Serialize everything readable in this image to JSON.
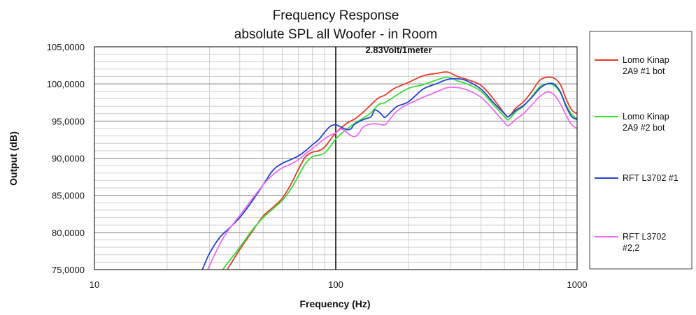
{
  "chart_data": {
    "type": "line",
    "title": [
      "Frequency Response",
      "absolute SPL all Woofer - in Room"
    ],
    "annotation": "2.83Volt/1meter",
    "xlabel": "Frequency (Hz)",
    "ylabel": "Output (dB)",
    "x_scale": "log",
    "xlim": [
      10,
      1000
    ],
    "ylim": [
      75,
      105
    ],
    "x_ticks": [
      {
        "value": 10,
        "label": "10"
      },
      {
        "value": 100,
        "label": "100"
      },
      {
        "value": 1000,
        "label": "1000"
      }
    ],
    "y_ticks": [
      {
        "value": 75,
        "label": "75,0000"
      },
      {
        "value": 80,
        "label": "80,0000"
      },
      {
        "value": 85,
        "label": "85,0000"
      },
      {
        "value": 90,
        "label": "90,0000"
      },
      {
        "value": 95,
        "label": "95,0000"
      },
      {
        "value": 100,
        "label": "100,0000"
      },
      {
        "value": 105,
        "label": "105,0000"
      }
    ],
    "reference_line_x": 100,
    "grid": true,
    "legend_position": "right",
    "series": [
      {
        "name": [
          "Lomo Kinap",
          "2A9 #1 bot"
        ],
        "color": "#e8382b",
        "points": [
          [
            35.5,
            75
          ],
          [
            40,
            77.7
          ],
          [
            45,
            80.1
          ],
          [
            50,
            82.2
          ],
          [
            55,
            83.4
          ],
          [
            60,
            84.6
          ],
          [
            65,
            86.4
          ],
          [
            70,
            88.5
          ],
          [
            75,
            90.2
          ],
          [
            80,
            90.8
          ],
          [
            85,
            91.0
          ],
          [
            90,
            91.5
          ],
          [
            95,
            92.5
          ],
          [
            100,
            93.4
          ],
          [
            110,
            94.6
          ],
          [
            120,
            95.3
          ],
          [
            130,
            96.2
          ],
          [
            140,
            97.2
          ],
          [
            150,
            98.1
          ],
          [
            160,
            98.5
          ],
          [
            175,
            99.4
          ],
          [
            200,
            100.2
          ],
          [
            230,
            101.1
          ],
          [
            260,
            101.4
          ],
          [
            290,
            101.6
          ],
          [
            320,
            101.0
          ],
          [
            350,
            100.6
          ],
          [
            400,
            99.8
          ],
          [
            450,
            98.0
          ],
          [
            500,
            96.0
          ],
          [
            520,
            95.6
          ],
          [
            560,
            96.8
          ],
          [
            600,
            97.6
          ],
          [
            650,
            99.0
          ],
          [
            700,
            100.5
          ],
          [
            750,
            100.9
          ],
          [
            800,
            100.8
          ],
          [
            850,
            100.0
          ],
          [
            900,
            98.0
          ],
          [
            950,
            96.5
          ],
          [
            1000,
            96.0
          ]
        ]
      },
      {
        "name": [
          "Lomo Kinap",
          "2A9 #2 bot"
        ],
        "color": "#33e033",
        "points": [
          [
            34,
            75
          ],
          [
            40,
            78.0
          ],
          [
            45,
            80.3
          ],
          [
            50,
            82.0
          ],
          [
            55,
            83.2
          ],
          [
            60,
            84.3
          ],
          [
            65,
            85.8
          ],
          [
            70,
            87.6
          ],
          [
            75,
            89.3
          ],
          [
            80,
            90.2
          ],
          [
            85,
            90.4
          ],
          [
            90,
            90.7
          ],
          [
            95,
            91.6
          ],
          [
            100,
            92.6
          ],
          [
            110,
            93.8
          ],
          [
            120,
            94.7
          ],
          [
            130,
            95.4
          ],
          [
            140,
            96.1
          ],
          [
            150,
            97.2
          ],
          [
            160,
            97.5
          ],
          [
            175,
            98.3
          ],
          [
            200,
            99.4
          ],
          [
            230,
            99.9
          ],
          [
            260,
            100.5
          ],
          [
            290,
            100.9
          ],
          [
            320,
            100.4
          ],
          [
            350,
            100.0
          ],
          [
            400,
            99.0
          ],
          [
            450,
            97.2
          ],
          [
            500,
            95.6
          ],
          [
            520,
            95.2
          ],
          [
            560,
            96.3
          ],
          [
            600,
            97.0
          ],
          [
            650,
            98.3
          ],
          [
            700,
            99.6
          ],
          [
            750,
            100.0
          ],
          [
            800,
            99.8
          ],
          [
            850,
            98.9
          ],
          [
            900,
            97.2
          ],
          [
            950,
            95.9
          ],
          [
            1000,
            95.3
          ]
        ]
      },
      {
        "name": [
          "RFT L3702 #1"
        ],
        "color": "#2442d6",
        "points": [
          [
            28,
            75
          ],
          [
            30,
            77.2
          ],
          [
            33,
            79.3
          ],
          [
            36,
            80.5
          ],
          [
            40,
            82.0
          ],
          [
            45,
            84.2
          ],
          [
            50,
            86.4
          ],
          [
            55,
            88.4
          ],
          [
            60,
            89.3
          ],
          [
            65,
            89.8
          ],
          [
            70,
            90.3
          ],
          [
            75,
            91.0
          ],
          [
            80,
            91.8
          ],
          [
            85,
            92.5
          ],
          [
            90,
            93.5
          ],
          [
            95,
            94.3
          ],
          [
            100,
            94.5
          ],
          [
            105,
            94.2
          ],
          [
            110,
            93.9
          ],
          [
            115,
            93.9
          ],
          [
            120,
            94.6
          ],
          [
            130,
            95.2
          ],
          [
            140,
            95.6
          ],
          [
            145,
            96.5
          ],
          [
            150,
            96.3
          ],
          [
            155,
            95.9
          ],
          [
            160,
            95.5
          ],
          [
            170,
            96.3
          ],
          [
            180,
            97.0
          ],
          [
            200,
            97.6
          ],
          [
            230,
            99.3
          ],
          [
            260,
            100.0
          ],
          [
            290,
            100.6
          ],
          [
            320,
            100.7
          ],
          [
            350,
            100.4
          ],
          [
            400,
            99.3
          ],
          [
            450,
            97.5
          ],
          [
            500,
            96.0
          ],
          [
            520,
            95.6
          ],
          [
            560,
            96.5
          ],
          [
            600,
            97.1
          ],
          [
            650,
            98.2
          ],
          [
            700,
            99.4
          ],
          [
            750,
            100.0
          ],
          [
            800,
            100.0
          ],
          [
            850,
            99.0
          ],
          [
            900,
            97.0
          ],
          [
            950,
            95.6
          ],
          [
            1000,
            95.2
          ]
        ]
      },
      {
        "name": [
          "RFT L3702",
          "#2,2"
        ],
        "color": "#f06cf0",
        "points": [
          [
            29.5,
            75
          ],
          [
            32,
            77.5
          ],
          [
            35,
            79.8
          ],
          [
            40,
            82.3
          ],
          [
            45,
            84.5
          ],
          [
            50,
            86.4
          ],
          [
            55,
            87.8
          ],
          [
            60,
            88.7
          ],
          [
            65,
            89.2
          ],
          [
            70,
            89.8
          ],
          [
            75,
            90.6
          ],
          [
            80,
            91.3
          ],
          [
            85,
            92.0
          ],
          [
            90,
            92.6
          ],
          [
            95,
            93.1
          ],
          [
            100,
            93.4
          ],
          [
            105,
            93.9
          ],
          [
            110,
            93.6
          ],
          [
            115,
            93.1
          ],
          [
            120,
            92.9
          ],
          [
            125,
            93.4
          ],
          [
            130,
            94.2
          ],
          [
            140,
            94.6
          ],
          [
            150,
            94.6
          ],
          [
            160,
            94.5
          ],
          [
            170,
            95.5
          ],
          [
            180,
            96.4
          ],
          [
            200,
            97.3
          ],
          [
            230,
            98.2
          ],
          [
            260,
            98.9
          ],
          [
            290,
            99.5
          ],
          [
            320,
            99.5
          ],
          [
            350,
            99.2
          ],
          [
            400,
            98.2
          ],
          [
            450,
            96.5
          ],
          [
            500,
            94.8
          ],
          [
            520,
            94.4
          ],
          [
            560,
            95.3
          ],
          [
            600,
            96.0
          ],
          [
            650,
            97.2
          ],
          [
            700,
            98.3
          ],
          [
            750,
            98.9
          ],
          [
            800,
            98.6
          ],
          [
            850,
            97.4
          ],
          [
            900,
            95.8
          ],
          [
            950,
            94.5
          ],
          [
            1000,
            94.0
          ]
        ]
      }
    ]
  }
}
